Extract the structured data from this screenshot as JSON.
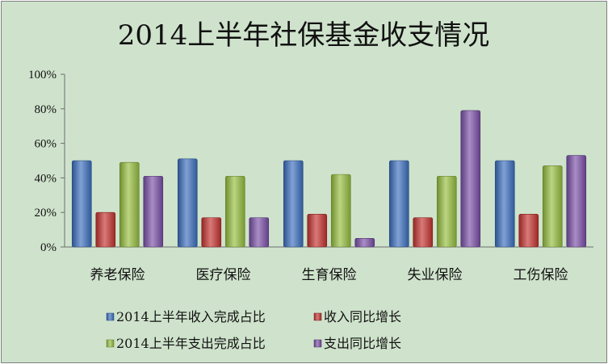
{
  "chart_data": {
    "type": "bar",
    "title": "2014上半年社保基金收支情况",
    "xlabel": "",
    "ylabel": "",
    "ylim": [
      0,
      1
    ],
    "yticks": [
      "0%",
      "20%",
      "40%",
      "60%",
      "80%",
      "100%"
    ],
    "categories": [
      "养老保险",
      "医疗保险",
      "生育保险",
      "失业保险",
      "工伤保险"
    ],
    "series": [
      {
        "name": "2014上半年收入完成占比",
        "color": "#3b6fbf",
        "values": [
          0.5,
          0.51,
          0.5,
          0.5,
          0.5
        ]
      },
      {
        "name": "收入同比增长",
        "color": "#c43330",
        "values": [
          0.2,
          0.17,
          0.19,
          0.17,
          0.19
        ]
      },
      {
        "name": "2014上半年支出完成占比",
        "color": "#96be3e",
        "values": [
          0.49,
          0.41,
          0.42,
          0.41,
          0.47
        ]
      },
      {
        "name": "支出同比增长",
        "color": "#7a4fa8",
        "values": [
          0.41,
          0.17,
          0.05,
          0.79,
          0.53
        ]
      }
    ],
    "grid": false,
    "legend_position": "bottom"
  }
}
